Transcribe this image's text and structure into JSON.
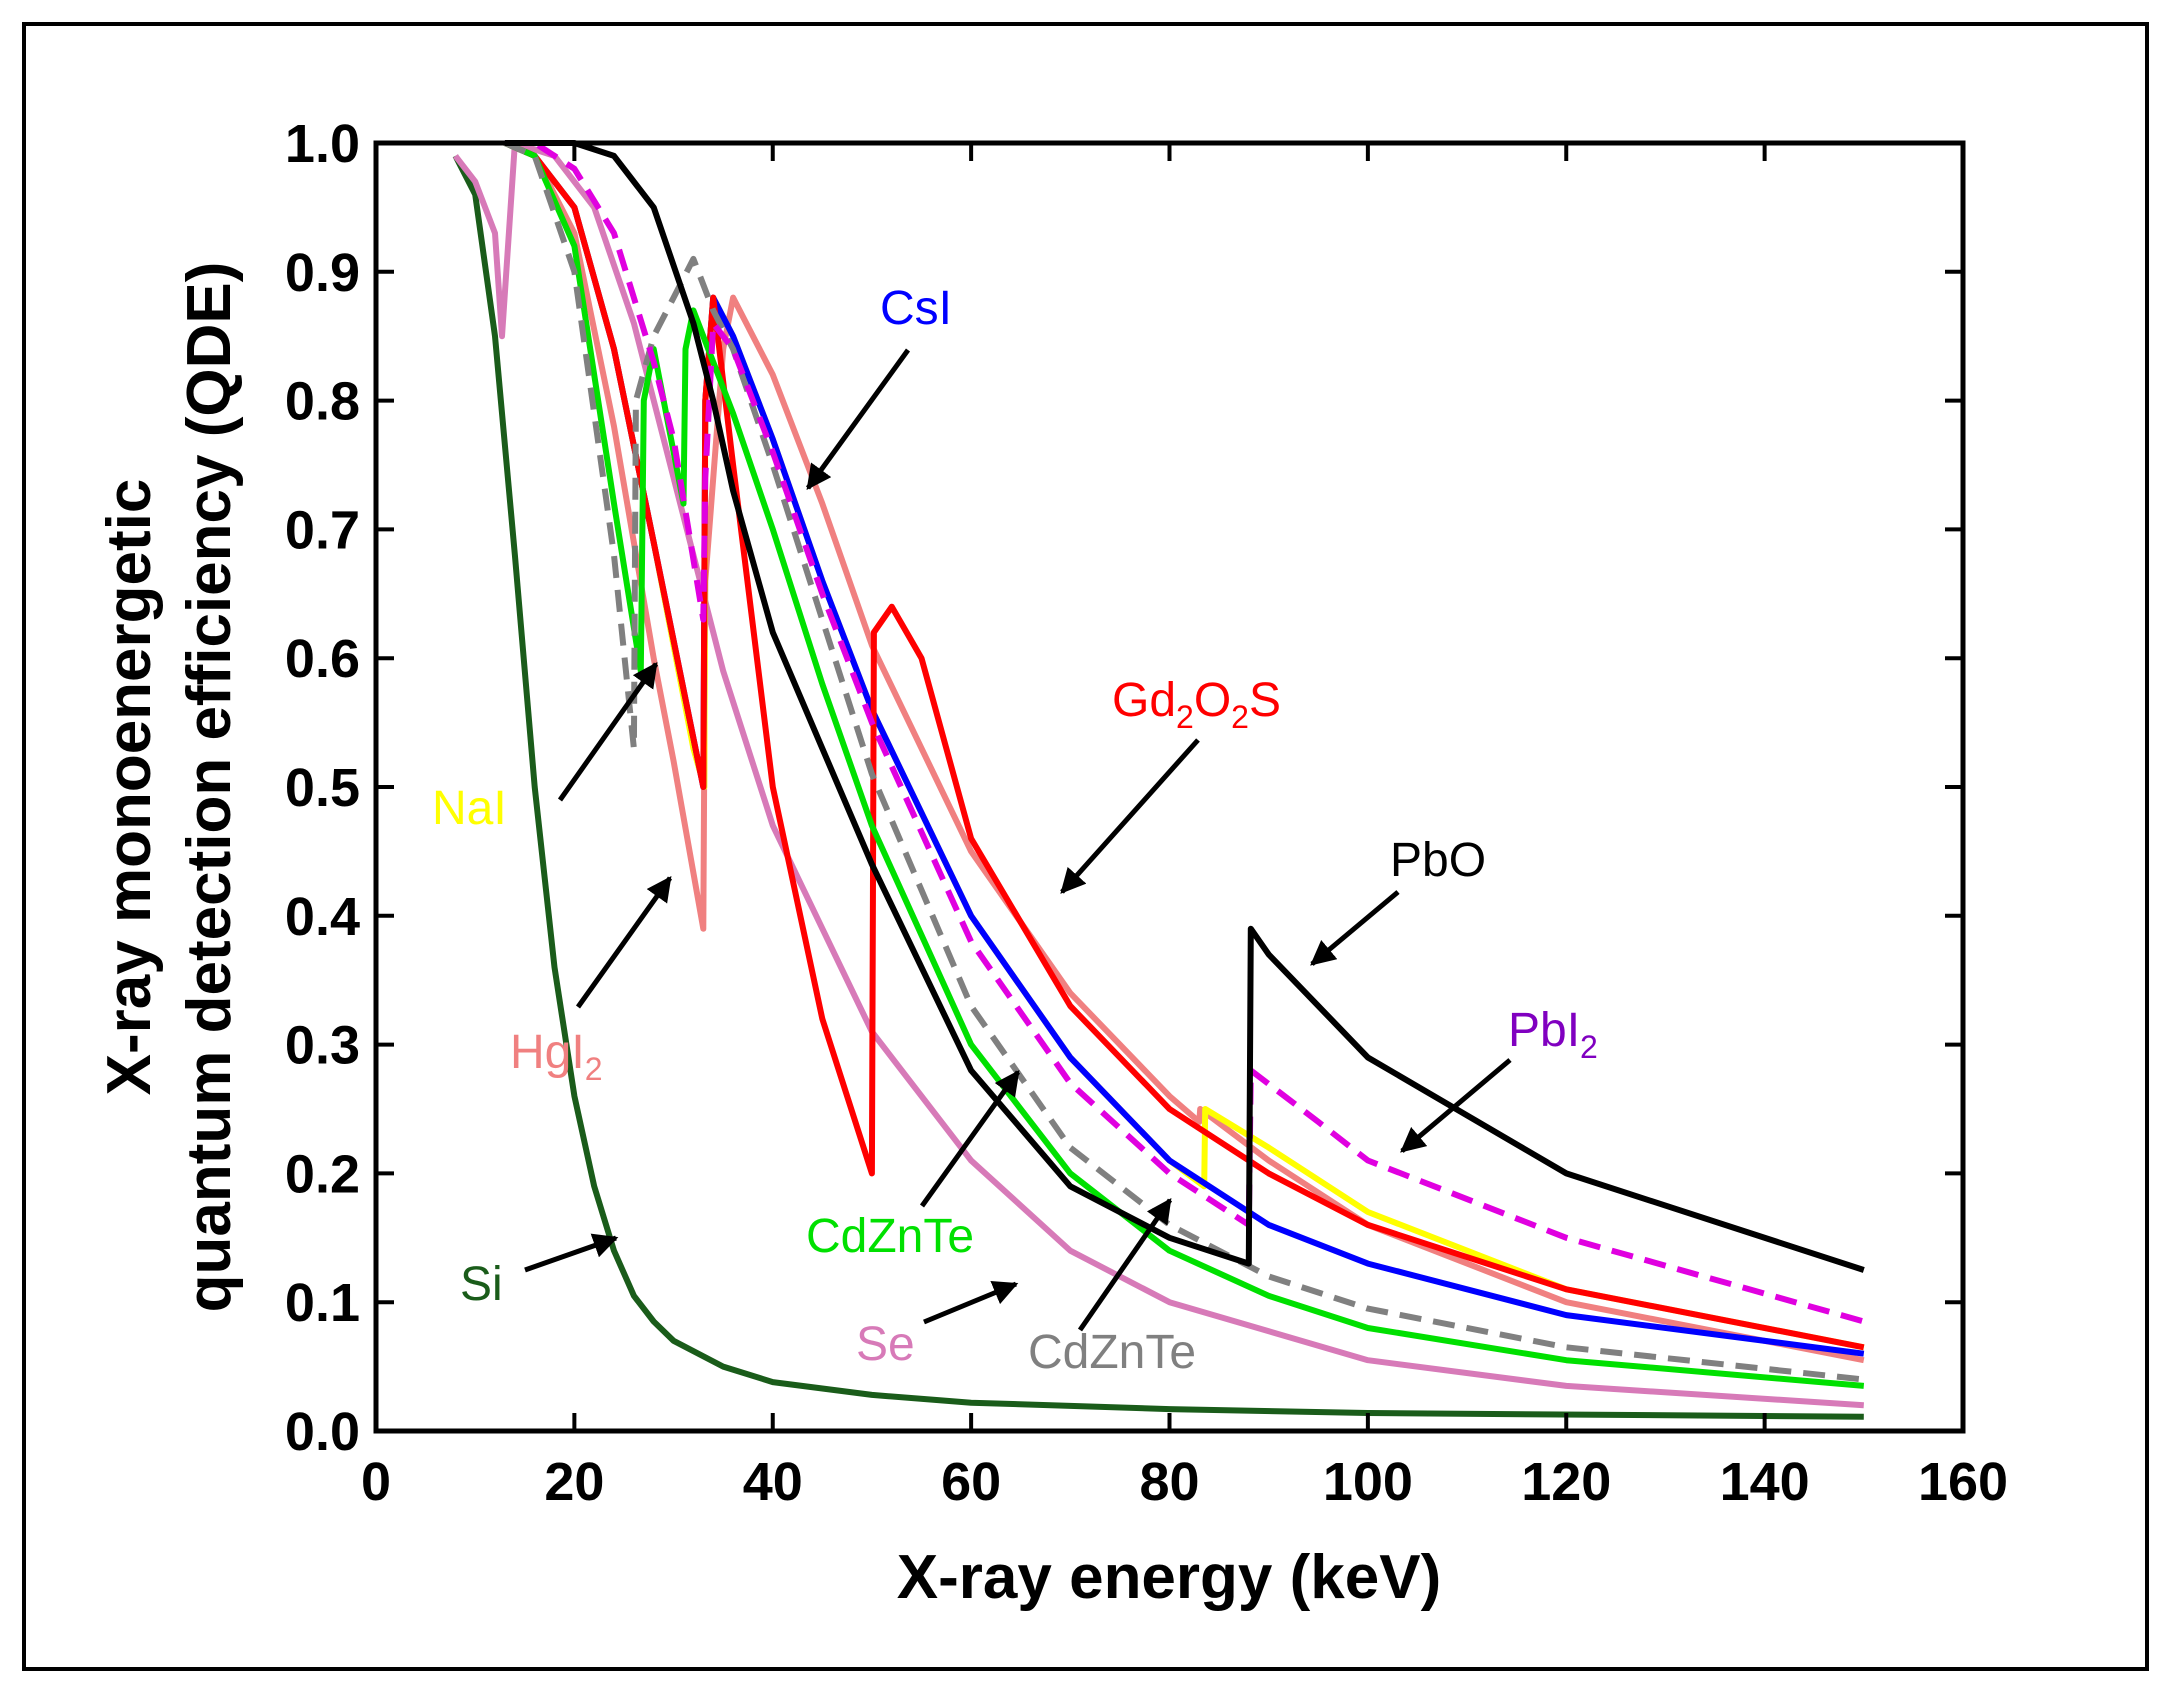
{
  "chart_data": {
    "type": "line",
    "title": "",
    "xlabel": "X-ray energy (keV)",
    "ylabel_line1": "X-ray monoenergetic",
    "ylabel_line2": "quantum detection efficiency (QDE)",
    "xlim": [
      0,
      160
    ],
    "ylim": [
      0,
      1.0
    ],
    "xticks": [
      0,
      20,
      40,
      60,
      80,
      100,
      120,
      140,
      160
    ],
    "yticks": [
      0.0,
      0.1,
      0.2,
      0.3,
      0.4,
      0.5,
      0.6,
      0.7,
      0.8,
      0.9,
      1.0
    ],
    "xtick_labels": [
      "0",
      "20",
      "40",
      "60",
      "80",
      "100",
      "120",
      "140",
      "160"
    ],
    "ytick_labels": [
      "0.0",
      "0.1",
      "0.2",
      "0.3",
      "0.4",
      "0.5",
      "0.6",
      "0.7",
      "0.8",
      "0.9",
      "1.0"
    ],
    "series": [
      {
        "name": "Si",
        "color": "#1a5c1a",
        "dash": false,
        "x": [
          8,
          10,
          12,
          14,
          16,
          18,
          20,
          22,
          24,
          26,
          28,
          30,
          35,
          40,
          50,
          60,
          80,
          100,
          150
        ],
        "y": [
          0.99,
          0.96,
          0.85,
          0.68,
          0.5,
          0.36,
          0.26,
          0.19,
          0.14,
          0.105,
          0.085,
          0.07,
          0.05,
          0.038,
          0.028,
          0.022,
          0.017,
          0.014,
          0.011
        ]
      },
      {
        "name": "Se",
        "color": "#d77ab8",
        "dash": false,
        "x": [
          8,
          10,
          12,
          12.7,
          14,
          18,
          22,
          26,
          30,
          35,
          40,
          50,
          60,
          70,
          80,
          100,
          120,
          150
        ],
        "y": [
          0.99,
          0.97,
          0.93,
          0.85,
          1.0,
          0.99,
          0.95,
          0.86,
          0.74,
          0.59,
          0.47,
          0.31,
          0.21,
          0.14,
          0.1,
          0.055,
          0.035,
          0.02
        ]
      },
      {
        "name": "HgI2",
        "color": "#f08080",
        "dash": false,
        "x": [
          13,
          16,
          20,
          24,
          28,
          30,
          33,
          33.2,
          35,
          36,
          40,
          45,
          50,
          60,
          70,
          80,
          83,
          83.1,
          90,
          100,
          120,
          150
        ],
        "y": [
          1.0,
          0.99,
          0.93,
          0.78,
          0.6,
          0.52,
          0.39,
          0.66,
          0.84,
          0.88,
          0.82,
          0.72,
          0.61,
          0.45,
          0.34,
          0.26,
          0.24,
          0.25,
          0.21,
          0.16,
          0.1,
          0.055
        ]
      },
      {
        "name": "NaI",
        "color": "#ffff00",
        "dash": false,
        "x": [
          13,
          16,
          20,
          24,
          28,
          32,
          33.1,
          33.2,
          34,
          36,
          40,
          45,
          50,
          60,
          70,
          80,
          83.5,
          83.6,
          90,
          100,
          120,
          150
        ],
        "y": [
          1.0,
          0.99,
          0.95,
          0.84,
          0.69,
          0.53,
          0.5,
          0.8,
          0.88,
          0.85,
          0.77,
          0.66,
          0.56,
          0.4,
          0.29,
          0.21,
          0.19,
          0.25,
          0.22,
          0.17,
          0.11,
          0.065
        ]
      },
      {
        "name": "CsI",
        "color": "#0000ff",
        "dash": false,
        "x": [
          13,
          16,
          20,
          24,
          28,
          33,
          33.2,
          34,
          36,
          40,
          45,
          50,
          60,
          70,
          80,
          90,
          100,
          120,
          150
        ],
        "y": [
          1.0,
          0.99,
          0.95,
          0.84,
          0.69,
          0.5,
          0.8,
          0.88,
          0.85,
          0.77,
          0.66,
          0.56,
          0.4,
          0.29,
          0.21,
          0.16,
          0.13,
          0.09,
          0.06
        ]
      },
      {
        "name": "Gd2O2S",
        "color": "#ff0000",
        "dash": false,
        "x": [
          13,
          16,
          20,
          24,
          28,
          33,
          33.2,
          34,
          36,
          40,
          45,
          50,
          50.2,
          52,
          55,
          60,
          70,
          80,
          90,
          100,
          120,
          150
        ],
        "y": [
          1.0,
          0.99,
          0.95,
          0.84,
          0.69,
          0.5,
          0.8,
          0.88,
          0.75,
          0.5,
          0.32,
          0.2,
          0.62,
          0.64,
          0.6,
          0.46,
          0.33,
          0.25,
          0.2,
          0.16,
          0.11,
          0.065
        ]
      },
      {
        "name": "CdZnTe",
        "color": "#00e000",
        "dash": false,
        "x": [
          13,
          16,
          20,
          24,
          26.7,
          27,
          28,
          30,
          31,
          31.2,
          32,
          34,
          36,
          40,
          45,
          50,
          60,
          70,
          80,
          90,
          100,
          120,
          150
        ],
        "y": [
          1.0,
          0.99,
          0.92,
          0.72,
          0.59,
          0.8,
          0.84,
          0.76,
          0.72,
          0.84,
          0.87,
          0.83,
          0.79,
          0.7,
          0.58,
          0.47,
          0.3,
          0.2,
          0.14,
          0.105,
          0.08,
          0.055,
          0.035
        ]
      },
      {
        "name": "CdZnTe (dashed)",
        "color": "#808080",
        "dash": true,
        "x": [
          13,
          16,
          20,
          24,
          26,
          26.2,
          28,
          30,
          32,
          34,
          36,
          40,
          45,
          50,
          60,
          70,
          80,
          90,
          100,
          120,
          150
        ],
        "y": [
          1.0,
          0.99,
          0.9,
          0.68,
          0.53,
          0.8,
          0.85,
          0.88,
          0.91,
          0.87,
          0.84,
          0.75,
          0.63,
          0.51,
          0.33,
          0.22,
          0.16,
          0.12,
          0.095,
          0.065,
          0.04
        ]
      },
      {
        "name": "PbI2",
        "color": "#e000e0",
        "dash": true,
        "x": [
          13,
          16,
          20,
          24,
          28,
          30,
          33,
          33.2,
          34,
          36,
          40,
          45,
          50,
          60,
          70,
          80,
          88,
          88.2,
          95,
          100,
          120,
          150
        ],
        "y": [
          1.0,
          1.0,
          0.98,
          0.93,
          0.83,
          0.77,
          0.63,
          0.74,
          0.86,
          0.84,
          0.76,
          0.65,
          0.55,
          0.38,
          0.27,
          0.2,
          0.16,
          0.28,
          0.24,
          0.21,
          0.15,
          0.085
        ]
      },
      {
        "name": "PbO",
        "color": "#000000",
        "dash": false,
        "x": [
          13,
          16,
          20,
          24,
          28,
          32,
          34,
          36,
          40,
          45,
          50,
          60,
          70,
          80,
          88,
          88.2,
          90,
          100,
          120,
          150
        ],
        "y": [
          1.0,
          1.0,
          1.0,
          0.99,
          0.95,
          0.86,
          0.8,
          0.73,
          0.62,
          0.53,
          0.44,
          0.28,
          0.19,
          0.15,
          0.13,
          0.39,
          0.37,
          0.29,
          0.2,
          0.125
        ]
      }
    ],
    "annotations": [
      {
        "name": "csi",
        "text": "CsI",
        "color": "#0000ff"
      },
      {
        "name": "gd2o2s",
        "text_base": "Gd",
        "sub1": "2",
        "mid": "O",
        "sub2": "2",
        "tail": "S",
        "color": "#ff0000"
      },
      {
        "name": "pbo",
        "text": "PbO",
        "color": "#000000"
      },
      {
        "name": "pbi2",
        "text_base": "PbI",
        "sub": "2",
        "color": "#8000c0"
      },
      {
        "name": "nai",
        "text": "NaI",
        "color": "#ffff00"
      },
      {
        "name": "hgi2",
        "text_base": "HgI",
        "sub": "2",
        "color": "#f08080"
      },
      {
        "name": "cdznte-green",
        "text": "CdZnTe",
        "color": "#00e000"
      },
      {
        "name": "si",
        "text": "Si",
        "color": "#1a5c1a"
      },
      {
        "name": "se",
        "text": "Se",
        "color": "#d77ab8"
      },
      {
        "name": "cdznte-gray",
        "text": "CdZnTe",
        "color": "#808080"
      }
    ]
  }
}
